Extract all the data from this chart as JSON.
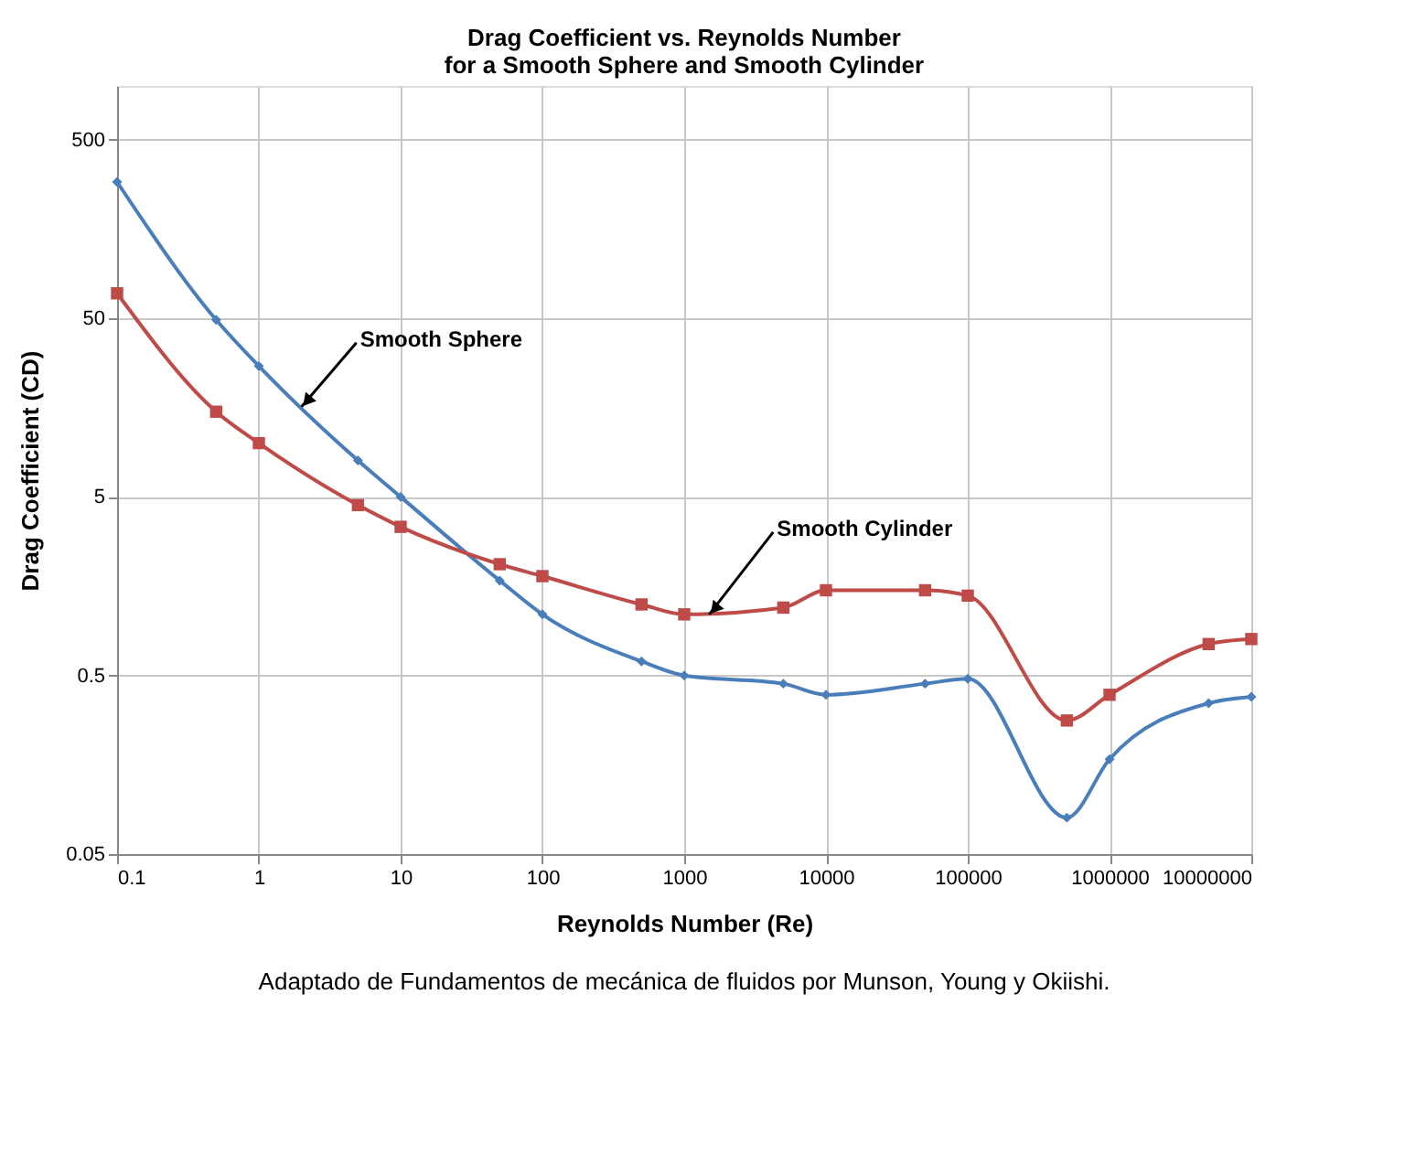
{
  "chart_data": {
    "type": "line",
    "title": [
      "Drag Coefficient vs. Reynolds Number",
      "for a Smooth Sphere and Smooth Cylinder"
    ],
    "xlabel": "Reynolds Number (Re)",
    "ylabel": "Drag Coefficient (CD)",
    "log": "xy",
    "grid": true,
    "xlim": [
      0.1,
      10000000
    ],
    "xticks": [
      0.1,
      1,
      10,
      100,
      1000,
      10000,
      100000,
      1000000,
      10000000
    ],
    "ylim": [
      0.05,
      1000
    ],
    "yticks": [
      0.05,
      0.5,
      5,
      50,
      500
    ],
    "series": [
      {
        "color": "#4a7ebb",
        "marker": "diamond",
        "x": [
          0.1,
          0.5,
          1,
          5,
          10,
          50,
          100,
          500,
          1000,
          5000,
          10000,
          50000,
          100000,
          500000,
          1000000,
          5000000,
          10000000
        ],
        "values": [
          290,
          49,
          27,
          8,
          5,
          1.7,
          1.1,
          0.6,
          0.5,
          0.45,
          0.39,
          0.45,
          0.48,
          0.08,
          0.17,
          0.35,
          0.38
        ]
      },
      {
        "color": "#be4b48",
        "marker": "square",
        "x": [
          0.1,
          0.5,
          1,
          5,
          10,
          50,
          100,
          500,
          1000,
          5000,
          10000,
          50000,
          100000,
          500000,
          1000000,
          5000000,
          10000000
        ],
        "values": [
          69,
          15,
          10,
          4.5,
          3.4,
          2.1,
          1.8,
          1.25,
          1.1,
          1.2,
          1.5,
          1.5,
          1.4,
          0.28,
          0.39,
          0.75,
          0.8
        ]
      }
    ],
    "annotations": [
      {
        "text": "Smooth Sphere",
        "x": 2,
        "y": 16
      },
      {
        "text": "Smooth Cylinder",
        "x": 1500,
        "y": 1.1
      },
      "Adaptado de Fundamentos de mecánica de fluidos por Munson, Young y Okiishi."
    ]
  }
}
